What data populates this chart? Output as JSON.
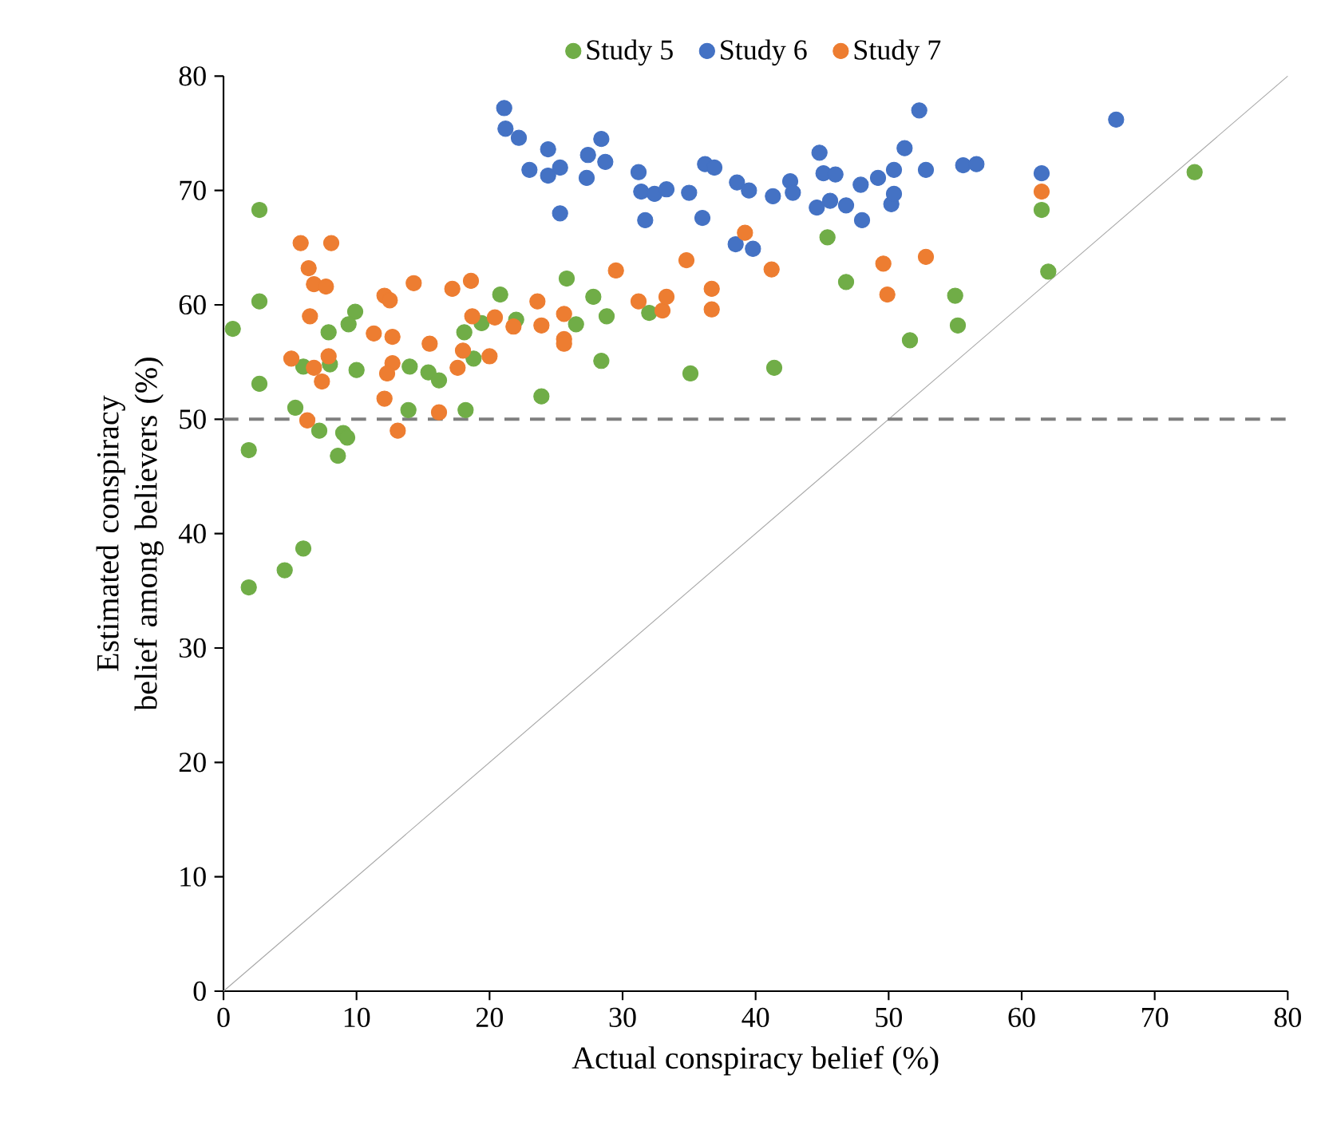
{
  "chart_data": {
    "type": "scatter",
    "xlabel": "Actual conspiracy belief (%)",
    "ylabel": "Estimated conspiracy belief among believers (%)",
    "xlim": [
      0,
      80
    ],
    "ylim": [
      0,
      80
    ],
    "xticks": [
      0,
      10,
      20,
      30,
      40,
      50,
      60,
      70,
      80
    ],
    "yticks": [
      0,
      10,
      20,
      30,
      40,
      50,
      60,
      70,
      80
    ],
    "grid": false,
    "legend": "top",
    "ref_lines": [
      {
        "axis": "y",
        "value": 50,
        "color": "#7f7f7f",
        "line_style": "dashed"
      }
    ],
    "series": [
      {
        "name": "Study 5",
        "marker": "circle",
        "color": "#70ad47",
        "x": [
          2.7,
          2.7,
          0.7,
          2.7,
          7.9,
          9.9,
          9.4,
          8.0,
          6.0,
          10.0,
          5.4,
          7.2,
          9.0,
          9.3,
          8.6,
          1.9,
          13.9,
          14.0,
          15.4,
          16.2,
          18.2,
          18.1,
          18.8,
          19.4,
          20.8,
          22.0,
          23.9,
          25.8,
          26.5,
          1.9,
          4.6,
          6.0,
          27.8,
          28.8,
          28.4,
          32.0,
          35.1,
          41.4,
          45.4,
          46.8,
          51.6,
          55.0,
          55.2,
          61.5,
          62.0,
          73.0
        ],
        "values": [
          68.3,
          60.3,
          57.9,
          53.1,
          57.6,
          59.4,
          58.3,
          54.8,
          54.6,
          54.3,
          51.0,
          49.0,
          48.8,
          48.4,
          46.8,
          47.3,
          50.8,
          54.6,
          54.1,
          53.4,
          50.8,
          57.6,
          55.3,
          58.4,
          60.9,
          58.7,
          52.0,
          62.3,
          58.3,
          35.3,
          36.8,
          38.7,
          60.7,
          59.0,
          55.1,
          59.3,
          54.0,
          54.5,
          65.9,
          62.0,
          56.9,
          60.8,
          58.2,
          68.3,
          62.9,
          71.6
        ]
      },
      {
        "name": "Study 6",
        "marker": "circle",
        "color": "#4472c4",
        "x": [
          21.1,
          21.2,
          22.2,
          23.0,
          24.4,
          24.4,
          25.3,
          25.3,
          27.4,
          28.4,
          28.7,
          27.3,
          31.2,
          31.4,
          31.7,
          32.4,
          33.3,
          35.0,
          36.0,
          36.2,
          36.9,
          38.6,
          39.5,
          38.5,
          39.8,
          41.3,
          42.6,
          42.8,
          44.8,
          45.1,
          46.0,
          44.6,
          45.6,
          46.8,
          48.0,
          47.9,
          49.2,
          50.2,
          50.4,
          50.4,
          51.2,
          52.3,
          52.8,
          55.6,
          56.6,
          61.5,
          67.1
        ],
        "values": [
          77.2,
          75.4,
          74.6,
          71.8,
          73.6,
          71.3,
          72.0,
          68.0,
          73.1,
          74.5,
          72.5,
          71.1,
          71.6,
          69.9,
          67.4,
          69.7,
          70.1,
          69.8,
          67.6,
          72.3,
          72.0,
          70.7,
          70.0,
          65.3,
          64.9,
          69.5,
          70.8,
          69.8,
          73.3,
          71.5,
          71.4,
          68.5,
          69.1,
          68.7,
          67.4,
          70.5,
          71.1,
          68.8,
          71.8,
          69.7,
          73.7,
          77.0,
          71.8,
          72.2,
          72.3,
          71.5,
          76.2
        ]
      },
      {
        "name": "Study 7",
        "marker": "circle",
        "color": "#ed7d31",
        "x": [
          5.8,
          8.1,
          6.4,
          6.8,
          7.7,
          6.5,
          5.1,
          7.9,
          6.8,
          7.4,
          6.3,
          12.1,
          12.5,
          14.3,
          11.3,
          12.7,
          12.7,
          12.3,
          12.1,
          13.1,
          15.5,
          16.2,
          17.2,
          18.6,
          18.7,
          17.6,
          18.0,
          20.0,
          20.4,
          21.8,
          23.6,
          23.9,
          25.6,
          25.6,
          25.6,
          29.5,
          31.2,
          33.0,
          33.3,
          34.8,
          36.7,
          36.7,
          39.2,
          41.2,
          49.6,
          49.9,
          52.8,
          61.5
        ],
        "values": [
          65.4,
          65.4,
          63.2,
          61.8,
          61.6,
          59.0,
          55.3,
          55.5,
          54.5,
          53.3,
          49.9,
          60.8,
          60.4,
          61.9,
          57.5,
          57.2,
          54.9,
          54.0,
          51.8,
          49.0,
          56.6,
          50.6,
          61.4,
          62.1,
          59.0,
          54.5,
          56.0,
          55.5,
          58.9,
          58.1,
          60.3,
          58.2,
          59.2,
          57.0,
          56.6,
          63.0,
          60.3,
          59.5,
          60.7,
          63.9,
          61.4,
          59.6,
          66.3,
          63.1,
          63.6,
          60.9,
          64.2,
          69.9
        ]
      },
      {
        "type": "line",
        "marker": "none",
        "color": "#a6a6a6",
        "x": [
          0,
          80
        ],
        "values": [
          0,
          80
        ]
      }
    ]
  }
}
